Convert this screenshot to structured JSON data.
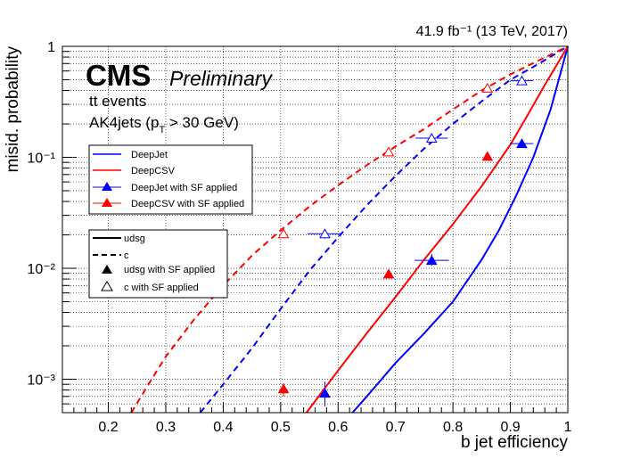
{
  "chart_data": {
    "type": "line",
    "lumi_label": "41.9 fb⁻¹ (13 TeV, 2017)",
    "experiment": "CMS",
    "status": "Preliminary",
    "info_lines": [
      "tt events",
      "AK4jets (p",
      "T",
      " > 30 GeV)"
    ],
    "xlabel": "b jet efficiency",
    "ylabel": "misid. probability",
    "xlim": [
      0.12,
      1.0
    ],
    "ylim": [
      0.0005,
      1.0
    ],
    "y_scale": "log",
    "grid": true,
    "x_ticks": [
      0.2,
      0.3,
      0.4,
      0.5,
      0.6,
      0.7,
      0.8,
      0.9,
      1.0
    ],
    "x_tick_labels": [
      "0.2",
      "0.3",
      "0.4",
      "0.5",
      "0.6",
      "0.7",
      "0.8",
      "0.9",
      "1"
    ],
    "y_ticks": [
      0.001,
      0.01,
      0.1,
      1
    ],
    "y_tick_labels": [
      "10⁻³",
      "10⁻²",
      "10⁻¹",
      "1"
    ],
    "colors": {
      "DeepJet": "#0000ff",
      "DeepCSV": "#ff0000"
    },
    "legend_tagger": {
      "placement": "middle-left",
      "entries": [
        "DeepJet",
        "DeepCSV",
        "DeepJet with SF applied",
        "DeepCSV with SF applied"
      ]
    },
    "legend_style": {
      "placement": "lower-left",
      "entries": [
        "udsg",
        "c",
        "udsg with SF applied",
        "c with SF applied"
      ]
    },
    "curves": [
      {
        "tagger": "DeepJet",
        "flavour": "udsg",
        "style": "solid",
        "x": [
          0.625,
          0.65,
          0.7,
          0.75,
          0.8,
          0.85,
          0.88,
          0.91,
          0.94,
          0.97,
          1.0
        ],
        "y": [
          0.0005,
          0.0007,
          0.0014,
          0.0026,
          0.005,
          0.012,
          0.022,
          0.045,
          0.1,
          0.27,
          1.0
        ]
      },
      {
        "tagger": "DeepCSV",
        "flavour": "udsg",
        "style": "solid",
        "x": [
          0.545,
          0.6,
          0.65,
          0.7,
          0.75,
          0.8,
          0.85,
          0.9,
          0.93,
          0.96,
          1.0
        ],
        "y": [
          0.0005,
          0.0012,
          0.0026,
          0.0055,
          0.012,
          0.025,
          0.055,
          0.13,
          0.24,
          0.45,
          1.0
        ]
      },
      {
        "tagger": "DeepJet",
        "flavour": "c",
        "style": "dashed",
        "x": [
          0.36,
          0.4,
          0.45,
          0.5,
          0.55,
          0.6,
          0.65,
          0.7,
          0.75,
          0.8,
          0.85,
          0.9,
          0.95,
          1.0
        ],
        "y": [
          0.0005,
          0.0009,
          0.0019,
          0.0043,
          0.0095,
          0.019,
          0.037,
          0.068,
          0.12,
          0.2,
          0.32,
          0.5,
          0.7,
          1.0
        ]
      },
      {
        "tagger": "DeepCSV",
        "flavour": "c",
        "style": "dashed",
        "x": [
          0.24,
          0.27,
          0.3,
          0.35,
          0.4,
          0.45,
          0.5,
          0.55,
          0.6,
          0.65,
          0.7,
          0.75,
          0.8,
          0.85,
          0.9,
          0.95,
          1.0
        ],
        "y": [
          0.0005,
          0.0009,
          0.0016,
          0.0035,
          0.007,
          0.013,
          0.022,
          0.036,
          0.056,
          0.085,
          0.125,
          0.18,
          0.27,
          0.4,
          0.56,
          0.75,
          1.0
        ]
      }
    ],
    "sf_points": [
      {
        "tagger": "DeepJet",
        "flavour": "udsg",
        "filled": true,
        "points": [
          {
            "x": 0.577,
            "y": 0.00075,
            "xerr": 0.0,
            "yerr": [
              0.00057,
              0.00095
            ]
          },
          {
            "x": 0.763,
            "y": 0.0118,
            "xerr": 0.03,
            "yerr": [
              0.0105,
              0.0135
            ]
          },
          {
            "x": 0.92,
            "y": 0.133,
            "xerr": 0.02,
            "yerr": [
              0.125,
              0.141
            ]
          }
        ]
      },
      {
        "tagger": "DeepCSV",
        "flavour": "udsg",
        "filled": true,
        "points": [
          {
            "x": 0.505,
            "y": 0.00082,
            "xerr": 0.0,
            "yerr": [
              0.0007,
              0.00092
            ]
          },
          {
            "x": 0.688,
            "y": 0.0089,
            "xerr": 0.0,
            "yerr": [
              0.0084,
              0.0094
            ]
          },
          {
            "x": 0.86,
            "y": 0.102,
            "xerr": 0.0,
            "yerr": [
              0.099,
              0.105
            ]
          }
        ]
      },
      {
        "tagger": "DeepJet",
        "flavour": "c",
        "filled": false,
        "points": [
          {
            "x": 0.577,
            "y": 0.0205,
            "xerr": 0.03,
            "yerr": [
              0.0185,
              0.0225
            ]
          },
          {
            "x": 0.763,
            "y": 0.149,
            "xerr": 0.028,
            "yerr": [
              0.14,
              0.158
            ]
          },
          {
            "x": 0.92,
            "y": 0.49,
            "xerr": 0.02,
            "yerr": [
              0.47,
              0.51
            ]
          }
        ]
      },
      {
        "tagger": "DeepCSV",
        "flavour": "c",
        "filled": false,
        "points": [
          {
            "x": 0.505,
            "y": 0.0205,
            "xerr": 0.0,
            "yerr": [
              0.0198,
              0.0212
            ]
          },
          {
            "x": 0.688,
            "y": 0.112,
            "xerr": 0.0,
            "yerr": [
              0.108,
              0.116
            ]
          },
          {
            "x": 0.86,
            "y": 0.42,
            "xerr": 0.0,
            "yerr": [
              0.41,
              0.43
            ]
          }
        ]
      }
    ]
  }
}
